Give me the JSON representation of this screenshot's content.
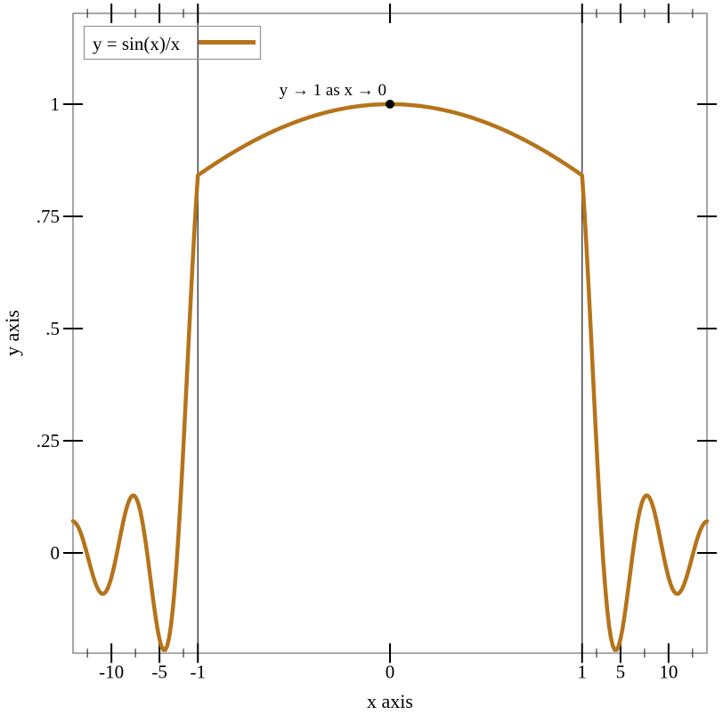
{
  "figure": {
    "background": "#ffffff"
  },
  "chart_data": {
    "type": "line",
    "title": "",
    "xlabel": "x axis",
    "ylabel": "y axis",
    "grid": false,
    "legend": {
      "position": "top-left",
      "entries": [
        {
          "label": "y = sin(x)/x",
          "color": "#b5741b"
        }
      ]
    },
    "series": [
      {
        "name": "y = sin(x)/x",
        "expression": "sin(x)/x",
        "x_domain": [
          -14,
          14
        ],
        "color": "#b5741b",
        "stroke_width": 4.5,
        "key_points": [
          {
            "x": 0,
            "y": 1
          },
          {
            "x": 1,
            "y": 0.8415
          },
          {
            "x": -1,
            "y": 0.8415
          },
          {
            "x": -4.49,
            "y": -0.217
          },
          {
            "x": 4.49,
            "y": -0.217
          },
          {
            "x": -7.73,
            "y": 0.128
          },
          {
            "x": 7.73,
            "y": 0.128
          },
          {
            "x": -10.9,
            "y": -0.091
          },
          {
            "x": 10.9,
            "y": -0.091
          },
          {
            "x": -14,
            "y": 0.0708
          },
          {
            "x": 14,
            "y": 0.0708
          }
        ]
      }
    ],
    "x_transform": {
      "type": "stretch",
      "interval": [
        -1,
        1
      ],
      "factor": 20
    },
    "x_axis": {
      "label": "x axis",
      "transformed_range": [
        -33,
        33
      ],
      "major_ticks": [
        {
          "value": -10,
          "label": "-10"
        },
        {
          "value": -5,
          "label": "-5"
        },
        {
          "value": -1,
          "label": "-1"
        },
        {
          "value": 0,
          "label": "0"
        },
        {
          "value": 1,
          "label": "1"
        },
        {
          "value": 5,
          "label": "5"
        },
        {
          "value": 10,
          "label": "10"
        }
      ],
      "minor_ticks": [
        -12.5,
        -7.5,
        -2.5,
        2.5,
        7.5,
        12.5
      ]
    },
    "y_axis": {
      "label": "y axis",
      "range": [
        -0.2232,
        1.2024
      ],
      "major_ticks": [
        {
          "value": 0,
          "label": "0"
        },
        {
          "value": 0.25,
          "label": ".25"
        },
        {
          "value": 0.5,
          "label": ".5"
        },
        {
          "value": 0.75,
          "label": ".75"
        },
        {
          "value": 1,
          "label": "1"
        }
      ]
    },
    "reference_lines_x": [
      -1,
      1
    ],
    "annotations": [
      {
        "type": "point-label",
        "x": 0,
        "y": 1,
        "text": "y → 1 as x → 0",
        "anchor": "bottom-right"
      }
    ]
  },
  "style": {
    "border_color": "#808080",
    "reference_line_color": "#3a3a3a",
    "major_tick_color": "#000000",
    "minor_tick_color": "#333333",
    "text_color": "#000000",
    "legend_border_color": "#999999",
    "legend_background": "transparent",
    "point_color": "#000000"
  }
}
